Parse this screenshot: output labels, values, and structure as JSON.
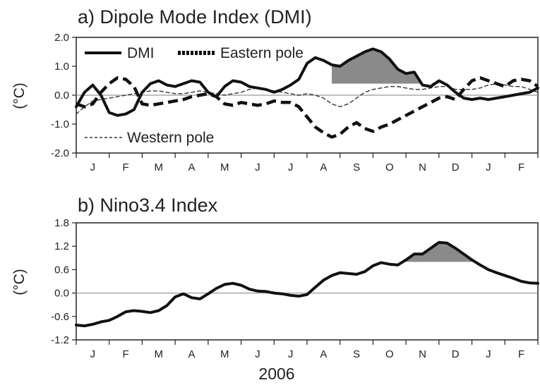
{
  "figure": {
    "bottom_label": "2006"
  },
  "chart_data": [
    {
      "type": "line",
      "title": "a) Dipole Mode Index (DMI)",
      "ylabel": "(°C)",
      "ylim": [
        -2.0,
        2.0
      ],
      "yticks": [
        "-2.0",
        "-1.0",
        "0.0",
        "1.0",
        "2.0"
      ],
      "yticks_values": [
        -2.0,
        -1.0,
        0.0,
        1.0,
        2.0
      ],
      "categories": [
        "J",
        "F",
        "M",
        "A",
        "M",
        "J",
        "J",
        "A",
        "S",
        "O",
        "N",
        "D",
        "J",
        "F"
      ],
      "xlim": [
        0,
        14
      ],
      "grid": false,
      "legend": [
        "DMI",
        "Eastern pole",
        "Western pole"
      ],
      "threshold": 0.4,
      "shade_range": [
        7.55,
        11.15
      ],
      "series": [
        {
          "name": "DMI",
          "style": "solid",
          "color": "#111111",
          "x": [
            0,
            0.25,
            0.5,
            0.75,
            1.0,
            1.25,
            1.5,
            1.75,
            2.0,
            2.25,
            2.5,
            2.75,
            3.0,
            3.25,
            3.5,
            3.75,
            4.0,
            4.25,
            4.5,
            4.75,
            5.0,
            5.25,
            5.5,
            5.75,
            6.0,
            6.25,
            6.5,
            6.75,
            7.0,
            7.25,
            7.5,
            7.75,
            8.0,
            8.25,
            8.5,
            8.75,
            9.0,
            9.25,
            9.5,
            9.75,
            10.0,
            10.25,
            10.5,
            10.75,
            11.0,
            11.25,
            11.5,
            11.75,
            12.0,
            12.25,
            12.5,
            12.75,
            13.0,
            13.25,
            13.5,
            13.75,
            14.0
          ],
          "values": [
            -0.4,
            0.1,
            0.35,
            0.0,
            -0.6,
            -0.7,
            -0.65,
            -0.5,
            0.1,
            0.4,
            0.5,
            0.35,
            0.3,
            0.4,
            0.5,
            0.45,
            0.1,
            -0.05,
            0.3,
            0.5,
            0.45,
            0.3,
            0.25,
            0.2,
            0.1,
            0.2,
            0.35,
            0.55,
            1.1,
            1.3,
            1.2,
            1.05,
            1.0,
            1.2,
            1.35,
            1.5,
            1.6,
            1.5,
            1.25,
            0.9,
            0.75,
            0.8,
            0.35,
            0.3,
            0.5,
            0.35,
            0.1,
            -0.1,
            -0.15,
            -0.1,
            -0.15,
            -0.1,
            -0.05,
            0.0,
            0.05,
            0.1,
            0.25
          ]
        },
        {
          "name": "Eastern pole",
          "style": "thick-dash",
          "color": "#111111",
          "x": [
            0,
            0.25,
            0.5,
            0.75,
            1.0,
            1.25,
            1.5,
            1.75,
            2.0,
            2.25,
            2.5,
            2.75,
            3.0,
            3.25,
            3.5,
            3.75,
            4.0,
            4.25,
            4.5,
            4.75,
            5.0,
            5.25,
            5.5,
            5.75,
            6.0,
            6.25,
            6.5,
            6.75,
            7.0,
            7.25,
            7.5,
            7.75,
            8.0,
            8.25,
            8.5,
            8.75,
            9.0,
            9.25,
            9.5,
            9.75,
            10.0,
            10.25,
            10.5,
            10.75,
            11.0,
            11.25,
            11.5,
            11.75,
            12.0,
            12.25,
            12.5,
            12.75,
            13.0,
            13.25,
            13.5,
            13.75,
            14.0
          ],
          "values": [
            -0.3,
            -0.4,
            -0.3,
            0.1,
            0.4,
            0.6,
            0.55,
            0.3,
            -0.3,
            -0.35,
            -0.3,
            -0.25,
            -0.2,
            -0.15,
            -0.05,
            0.0,
            0.05,
            -0.05,
            -0.3,
            -0.35,
            -0.25,
            -0.3,
            -0.35,
            -0.3,
            -0.2,
            -0.25,
            -0.25,
            -0.4,
            -0.75,
            -1.1,
            -1.3,
            -1.45,
            -1.35,
            -1.1,
            -0.95,
            -1.15,
            -1.25,
            -1.1,
            -1.0,
            -0.85,
            -0.7,
            -0.55,
            -0.4,
            -0.25,
            -0.1,
            -0.05,
            -0.15,
            0.2,
            0.5,
            0.6,
            0.5,
            0.4,
            0.3,
            0.5,
            0.55,
            0.5,
            0.3
          ]
        },
        {
          "name": "Western pole",
          "style": "thin-dash",
          "color": "#333333",
          "x": [
            0,
            0.25,
            0.5,
            0.75,
            1.0,
            1.25,
            1.5,
            1.75,
            2.0,
            2.25,
            2.5,
            2.75,
            3.0,
            3.25,
            3.5,
            3.75,
            4.0,
            4.25,
            4.5,
            4.75,
            5.0,
            5.25,
            5.5,
            5.75,
            6.0,
            6.25,
            6.5,
            6.75,
            7.0,
            7.25,
            7.5,
            7.75,
            8.0,
            8.25,
            8.5,
            8.75,
            9.0,
            9.25,
            9.5,
            9.75,
            10.0,
            10.25,
            10.5,
            10.75,
            11.0,
            11.25,
            11.5,
            11.75,
            12.0,
            12.25,
            12.5,
            12.75,
            13.0,
            13.25,
            13.5,
            13.75,
            14.0
          ],
          "values": [
            -0.65,
            -0.4,
            -0.2,
            -0.15,
            -0.1,
            -0.05,
            0.0,
            0.05,
            0.1,
            0.15,
            0.15,
            0.1,
            0.05,
            0.05,
            0.1,
            0.15,
            0.1,
            0.05,
            0.0,
            0.05,
            0.1,
            0.2,
            0.25,
            0.2,
            0.15,
            0.1,
            0.05,
            0.0,
            0.05,
            0.0,
            -0.1,
            -0.3,
            -0.4,
            -0.3,
            -0.1,
            0.1,
            0.2,
            0.25,
            0.3,
            0.3,
            0.25,
            0.2,
            0.2,
            0.25,
            0.3,
            0.3,
            0.2,
            0.2,
            0.2,
            0.25,
            0.35,
            0.4,
            0.35,
            0.3,
            0.3,
            0.2,
            0.1
          ]
        }
      ]
    },
    {
      "type": "line",
      "title": "b) Nino3.4 Index",
      "ylabel": "(°C)",
      "ylim": [
        -1.2,
        1.8
      ],
      "yticks": [
        "-1.2",
        "-0.6",
        "0.0",
        "0.6",
        "1.2",
        "1.8"
      ],
      "yticks_values": [
        -1.2,
        -0.6,
        0.0,
        0.6,
        1.2,
        1.8
      ],
      "categories": [
        "J",
        "F",
        "M",
        "A",
        "M",
        "J",
        "J",
        "A",
        "S",
        "O",
        "N",
        "D",
        "J",
        "F"
      ],
      "xlim": [
        0,
        14
      ],
      "grid": false,
      "legend": [],
      "threshold": 0.8,
      "shade_range": [
        9.9,
        12.0
      ],
      "series": [
        {
          "name": "",
          "style": "solid",
          "color": "#111111",
          "x": [
            0,
            0.25,
            0.5,
            0.75,
            1.0,
            1.25,
            1.5,
            1.75,
            2.0,
            2.25,
            2.5,
            2.75,
            3.0,
            3.25,
            3.5,
            3.75,
            4.0,
            4.25,
            4.5,
            4.75,
            5.0,
            5.25,
            5.5,
            5.75,
            6.0,
            6.25,
            6.5,
            6.75,
            7.0,
            7.25,
            7.5,
            7.75,
            8.0,
            8.25,
            8.5,
            8.75,
            9.0,
            9.25,
            9.5,
            9.75,
            10.0,
            10.25,
            10.5,
            10.75,
            11.0,
            11.25,
            11.5,
            11.75,
            12.0,
            12.25,
            12.5,
            12.75,
            13.0,
            13.25,
            13.5,
            13.75,
            14.0
          ],
          "values": [
            -0.82,
            -0.84,
            -0.8,
            -0.74,
            -0.7,
            -0.6,
            -0.48,
            -0.45,
            -0.47,
            -0.5,
            -0.45,
            -0.32,
            -0.1,
            -0.02,
            -0.12,
            -0.15,
            -0.02,
            0.12,
            0.22,
            0.25,
            0.2,
            0.1,
            0.05,
            0.04,
            0.0,
            -0.02,
            -0.06,
            -0.08,
            -0.04,
            0.15,
            0.33,
            0.45,
            0.52,
            0.5,
            0.48,
            0.55,
            0.7,
            0.78,
            0.74,
            0.72,
            0.85,
            1.0,
            1.0,
            1.15,
            1.3,
            1.28,
            1.15,
            1.0,
            0.85,
            0.72,
            0.6,
            0.52,
            0.45,
            0.38,
            0.3,
            0.26,
            0.25
          ]
        }
      ]
    }
  ]
}
